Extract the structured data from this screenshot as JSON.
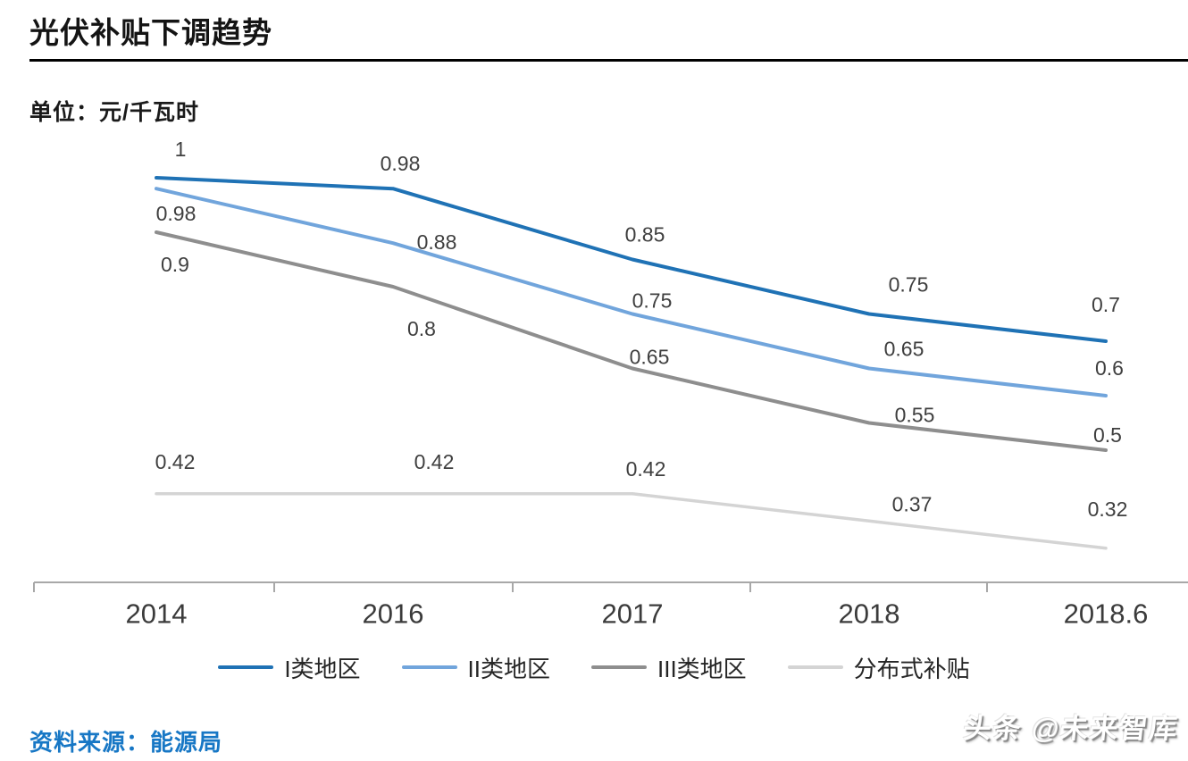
{
  "header": {
    "title": "光伏补贴下调趋势"
  },
  "chart_data": {
    "type": "line",
    "title": "光伏补贴下调趋势",
    "unit_label": "单位：元/千瓦时",
    "x_labels": [
      "2014",
      "2016",
      "2017",
      "2018",
      "2018.6"
    ],
    "ylim": [
      0.25,
      1.05
    ],
    "grid": false,
    "legend_position": "bottom",
    "axis_color": "#A8A8A8",
    "label_color": "#3F3F3F",
    "series": [
      {
        "name": "I类地区",
        "color": "#1F72B5",
        "values": [
          1,
          0.98,
          0.85,
          0.75,
          0.7
        ],
        "labels": [
          "1",
          "0.98",
          "0.85",
          "0.75",
          "0.7"
        ]
      },
      {
        "name": "II类地区",
        "color": "#71A5DC",
        "values": [
          0.98,
          0.88,
          0.75,
          0.65,
          0.6
        ],
        "labels": [
          "0.98",
          "0.88",
          "0.75",
          "0.65",
          "0.6"
        ]
      },
      {
        "name": "III类地区",
        "color": "#8E8E8E",
        "values": [
          0.9,
          0.8,
          0.65,
          0.55,
          0.5
        ],
        "labels": [
          "0.9",
          "0.8",
          "0.65",
          "0.55",
          "0.5"
        ]
      },
      {
        "name": "分布式补贴",
        "color": "#D4D4D4",
        "values": [
          0.42,
          0.42,
          0.42,
          0.37,
          0.32
        ],
        "labels": [
          "0.42",
          "0.42",
          "0.42",
          "0.37",
          "0.32"
        ]
      }
    ]
  },
  "footer": {
    "source": "资料来源：能源局",
    "watermark": "头条 @未来智库"
  }
}
